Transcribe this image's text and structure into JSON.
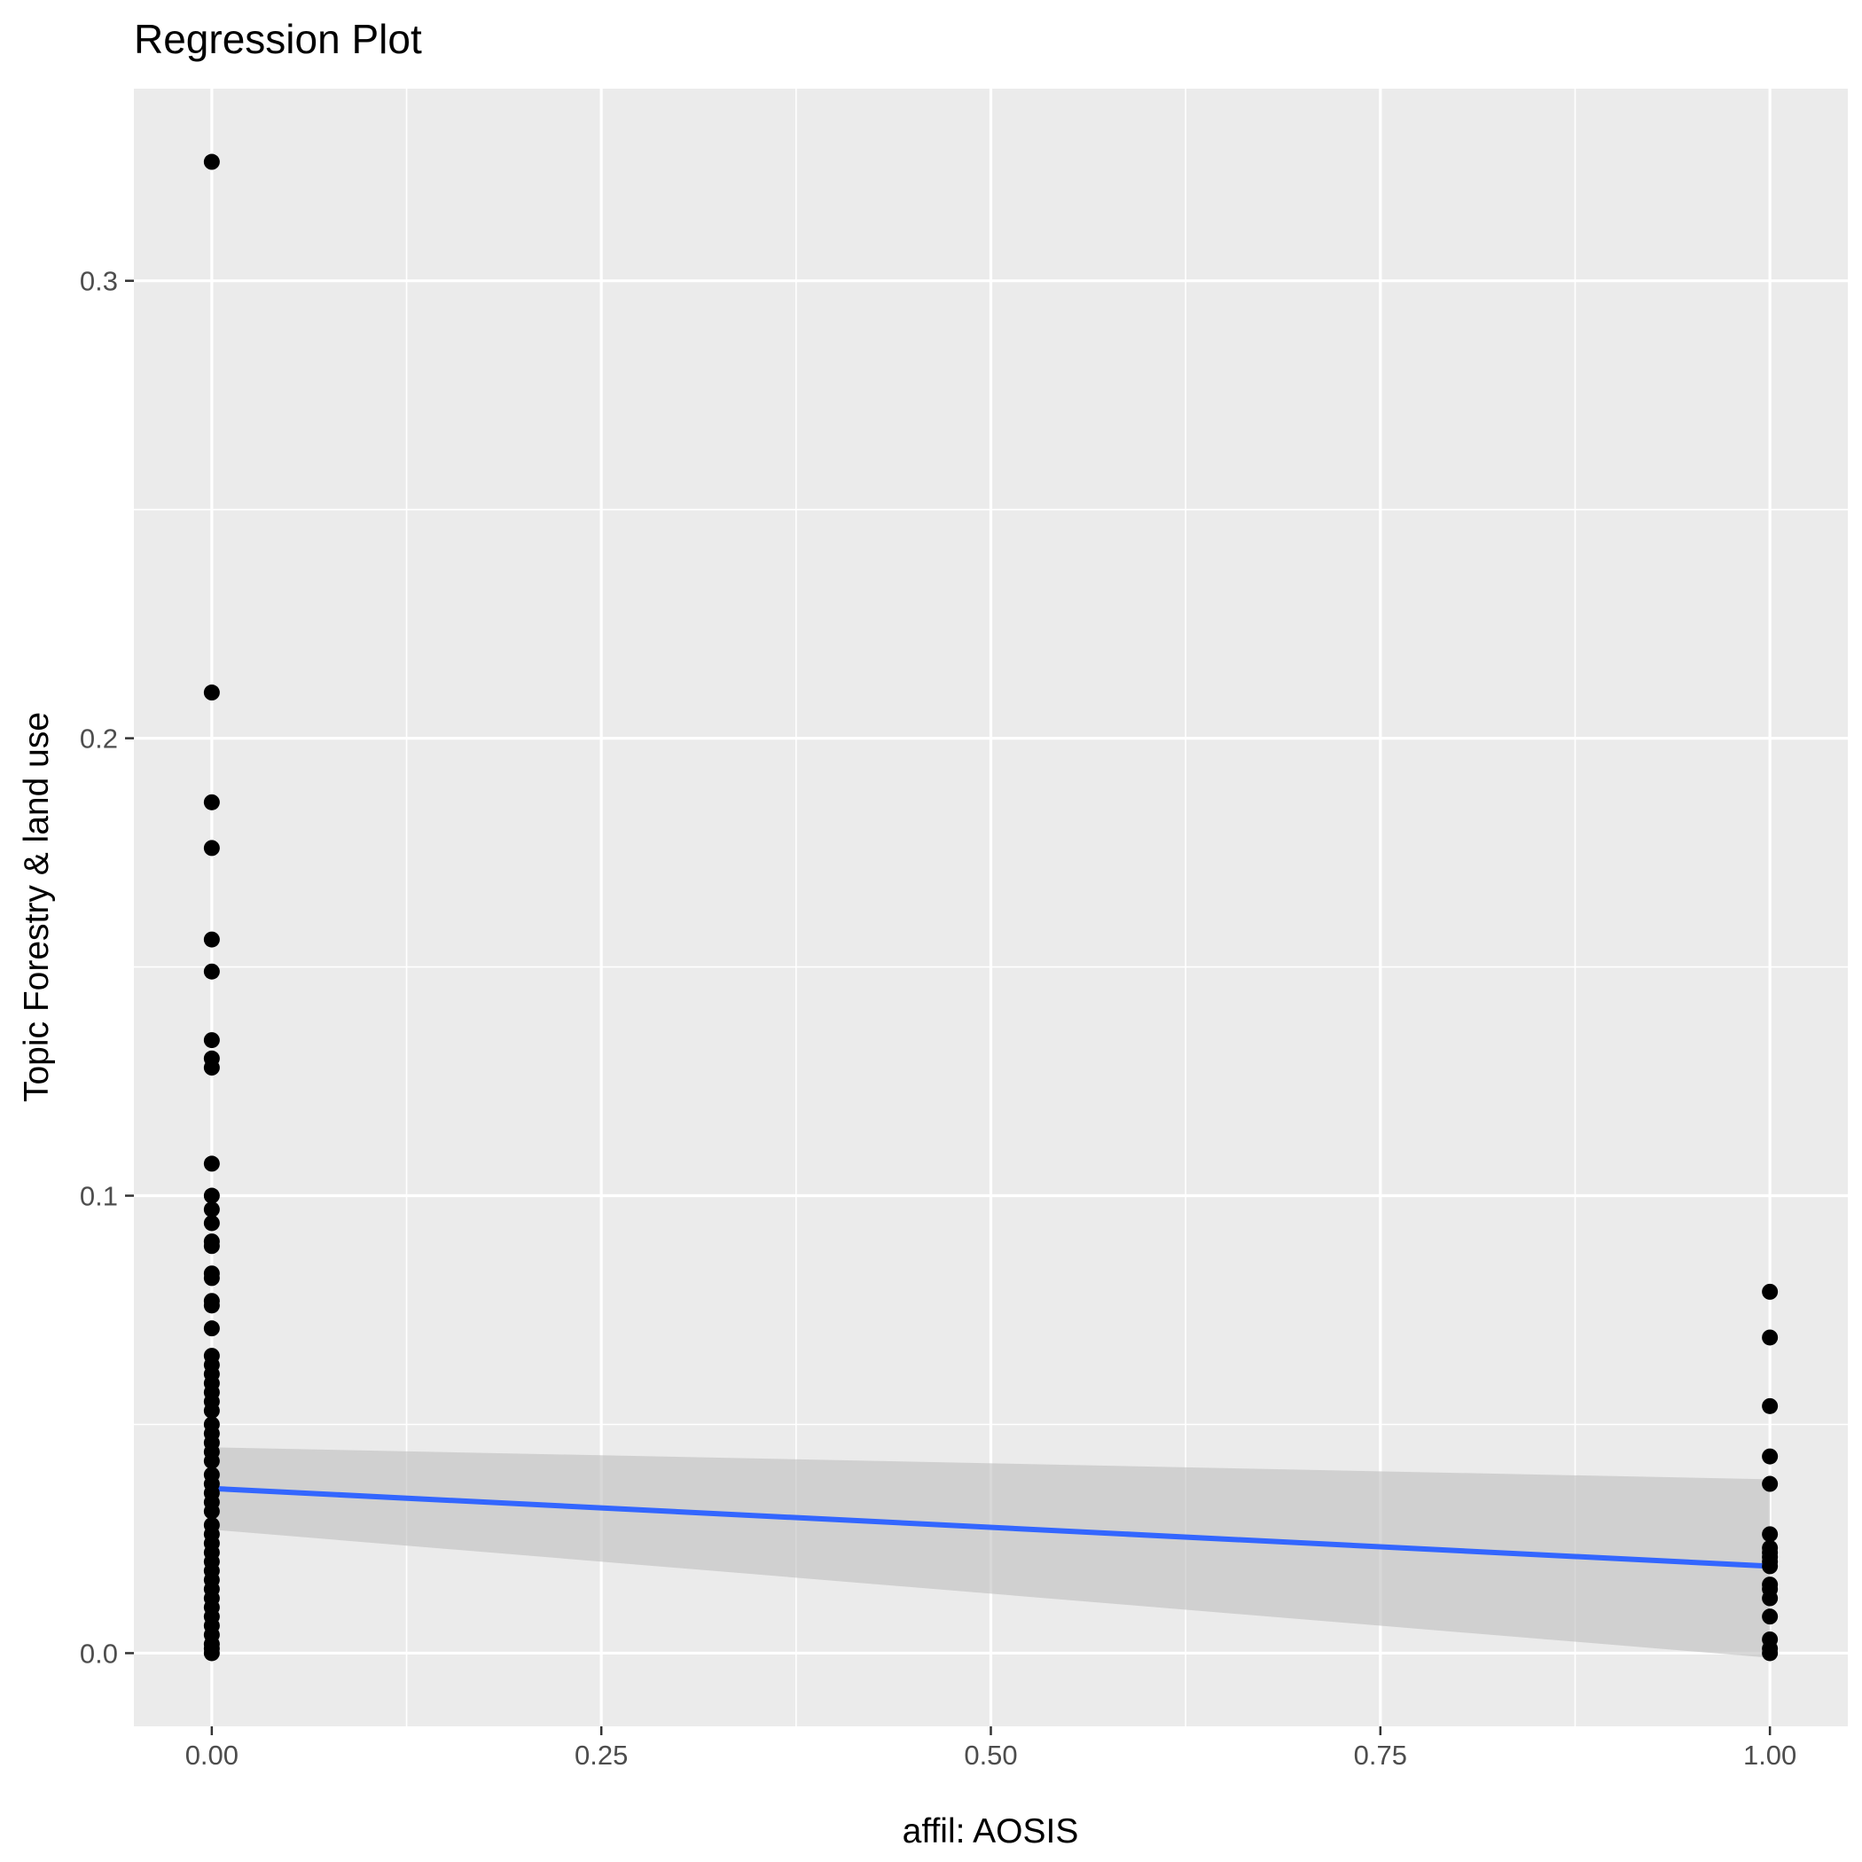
{
  "chart_data": {
    "type": "scatter",
    "title": "Regression Plot",
    "xlabel": "affil: AOSIS",
    "ylabel": "Topic Forestry & land use",
    "xlim": [
      -0.05,
      1.05
    ],
    "ylim": [
      -0.016,
      0.342
    ],
    "x_ticks": [
      0.0,
      0.25,
      0.5,
      0.75,
      1.0
    ],
    "x_tick_labels": [
      "0.00",
      "0.25",
      "0.50",
      "0.75",
      "1.00"
    ],
    "y_ticks": [
      0.0,
      0.1,
      0.2,
      0.3
    ],
    "y_tick_labels": [
      "0.0",
      "0.1",
      "0.2",
      "0.3"
    ],
    "grid": true,
    "colors": {
      "panel_background": "#ebebeb",
      "grid": "#ffffff",
      "points": "#000000",
      "fit_line": "#3366ff",
      "confidence_band": "#bebebe"
    },
    "points": [
      {
        "x": 0,
        "y": 0.326
      },
      {
        "x": 0,
        "y": 0.21
      },
      {
        "x": 0,
        "y": 0.186
      },
      {
        "x": 0,
        "y": 0.176
      },
      {
        "x": 0,
        "y": 0.156
      },
      {
        "x": 0,
        "y": 0.149
      },
      {
        "x": 0,
        "y": 0.134
      },
      {
        "x": 0,
        "y": 0.13
      },
      {
        "x": 0,
        "y": 0.128
      },
      {
        "x": 0,
        "y": 0.107
      },
      {
        "x": 0,
        "y": 0.1
      },
      {
        "x": 0,
        "y": 0.097
      },
      {
        "x": 0,
        "y": 0.094
      },
      {
        "x": 0,
        "y": 0.09
      },
      {
        "x": 0,
        "y": 0.089
      },
      {
        "x": 0,
        "y": 0.083
      },
      {
        "x": 0,
        "y": 0.082
      },
      {
        "x": 0,
        "y": 0.077
      },
      {
        "x": 0,
        "y": 0.076
      },
      {
        "x": 0,
        "y": 0.071
      },
      {
        "x": 0,
        "y": 0.065
      },
      {
        "x": 0,
        "y": 0.063
      },
      {
        "x": 0,
        "y": 0.061
      },
      {
        "x": 0,
        "y": 0.059
      },
      {
        "x": 0,
        "y": 0.057
      },
      {
        "x": 0,
        "y": 0.055
      },
      {
        "x": 0,
        "y": 0.053
      },
      {
        "x": 0,
        "y": 0.05
      },
      {
        "x": 0,
        "y": 0.048
      },
      {
        "x": 0,
        "y": 0.046
      },
      {
        "x": 0,
        "y": 0.044
      },
      {
        "x": 0,
        "y": 0.042
      },
      {
        "x": 0,
        "y": 0.039
      },
      {
        "x": 0,
        "y": 0.037
      },
      {
        "x": 0,
        "y": 0.035
      },
      {
        "x": 0,
        "y": 0.033
      },
      {
        "x": 0,
        "y": 0.031
      },
      {
        "x": 0,
        "y": 0.028
      },
      {
        "x": 0,
        "y": 0.026
      },
      {
        "x": 0,
        "y": 0.024
      },
      {
        "x": 0,
        "y": 0.022
      },
      {
        "x": 0,
        "y": 0.02
      },
      {
        "x": 0,
        "y": 0.018
      },
      {
        "x": 0,
        "y": 0.016
      },
      {
        "x": 0,
        "y": 0.014
      },
      {
        "x": 0,
        "y": 0.012
      },
      {
        "x": 0,
        "y": 0.01
      },
      {
        "x": 0,
        "y": 0.008
      },
      {
        "x": 0,
        "y": 0.006
      },
      {
        "x": 0,
        "y": 0.004
      },
      {
        "x": 0,
        "y": 0.002
      },
      {
        "x": 0,
        "y": 0.001
      },
      {
        "x": 0,
        "y": 0.0
      },
      {
        "x": 1,
        "y": 0.079
      },
      {
        "x": 1,
        "y": 0.069
      },
      {
        "x": 1,
        "y": 0.054
      },
      {
        "x": 1,
        "y": 0.043
      },
      {
        "x": 1,
        "y": 0.037
      },
      {
        "x": 1,
        "y": 0.026
      },
      {
        "x": 1,
        "y": 0.023
      },
      {
        "x": 1,
        "y": 0.022
      },
      {
        "x": 1,
        "y": 0.021
      },
      {
        "x": 1,
        "y": 0.02
      },
      {
        "x": 1,
        "y": 0.019
      },
      {
        "x": 1,
        "y": 0.015
      },
      {
        "x": 1,
        "y": 0.014
      },
      {
        "x": 1,
        "y": 0.012
      },
      {
        "x": 1,
        "y": 0.008
      },
      {
        "x": 1,
        "y": 0.003
      },
      {
        "x": 1,
        "y": 0.001
      },
      {
        "x": 1,
        "y": 0.0
      }
    ],
    "fit_line": {
      "x": [
        0,
        1
      ],
      "y": [
        0.036,
        0.019
      ]
    },
    "confidence_band": {
      "x": [
        0,
        1
      ],
      "y_lower": [
        0.027,
        -0.001
      ],
      "y_upper": [
        0.045,
        0.038
      ]
    }
  }
}
